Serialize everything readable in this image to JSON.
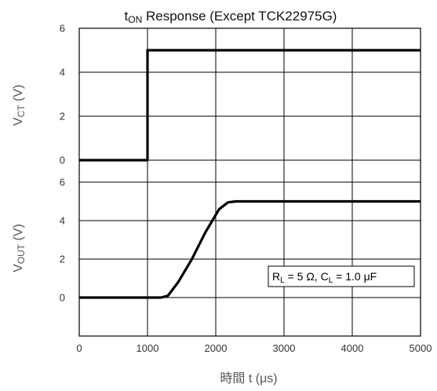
{
  "chart_data": {
    "type": "line",
    "title": {
      "prefix": "t",
      "subscript": "ON",
      "rest": " Response (Except TCK22975G)"
    },
    "xlabel": {
      "main": "時間 t (",
      "unit": "μs",
      "close": ")"
    },
    "xlim": [
      0,
      5000
    ],
    "x_ticks": [
      "0",
      "1000",
      "2000",
      "3000",
      "4000",
      "5000"
    ],
    "grid": true,
    "panels": [
      {
        "name": "vct",
        "ylabel": {
          "main": "V",
          "subscript": "CT",
          "rest": " (V)"
        },
        "ylim": [
          -1,
          6
        ],
        "y_ticks": [
          "0",
          "2",
          "4",
          "6"
        ],
        "series": [
          {
            "x": [
              0,
              1000,
              1000,
              5000
            ],
            "y": [
              0,
              0,
              5,
              5
            ]
          }
        ]
      },
      {
        "name": "vout",
        "ylabel": {
          "main": "V",
          "subscript": "OUT",
          "rest": " (V)"
        },
        "ylim": [
          -2,
          6
        ],
        "y_ticks": [
          "0",
          "2",
          "4",
          "6"
        ],
        "annotation": {
          "r": "R",
          "r_sub": "L",
          "r_val": " = 5 Ω, ",
          "c": "C",
          "c_sub": "L",
          "c_val": " = 1.0 ",
          "c_unit": "μF"
        },
        "series": [
          {
            "x": [
              0,
              1200,
              1300,
              1450,
              1650,
              1850,
              2050,
              2180,
              2300,
              5000
            ],
            "y": [
              0,
              0,
              0.1,
              0.8,
              2.0,
              3.4,
              4.6,
              4.95,
              5,
              5
            ]
          }
        ]
      }
    ],
    "line_color": "#000000",
    "grid_color": "#000000"
  }
}
